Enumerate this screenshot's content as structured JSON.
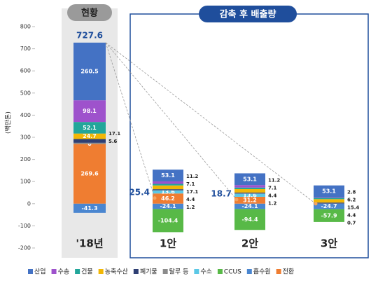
{
  "chart_data": {
    "type": "bar",
    "stacked": true,
    "header_left": "현황",
    "header_right": "감축 후 배출량",
    "y_label": "(백만톤)",
    "categories": [
      "'18년",
      "1안",
      "2안",
      "3안"
    ],
    "totals": [
      727.6,
      25.4,
      18.7,
      null
    ],
    "ylim": [
      -200,
      800
    ],
    "yticks": [
      -200,
      -100,
      0,
      100,
      200,
      300,
      400,
      500,
      600,
      700,
      800
    ],
    "series": [
      {
        "name": "산업",
        "color": "#4472c4",
        "values": [
          260.5,
          53.1,
          53.1,
          53.1
        ],
        "value_labels": [
          "260.5",
          "53.1",
          "53.1",
          "53.1"
        ]
      },
      {
        "name": "수송",
        "color": "#9e52cc",
        "values": [
          98.1,
          11.2,
          11.2,
          2.8
        ],
        "value_labels": [
          "98.1",
          "11.2",
          "11.2",
          "2.8"
        ]
      },
      {
        "name": "건물",
        "color": "#22a69a",
        "values": [
          52.1,
          7.1,
          7.1,
          6.2
        ],
        "value_labels": [
          "52.1",
          "7.1",
          "7.1",
          "6.2"
        ]
      },
      {
        "name": "농축수산",
        "color": "#f2b705",
        "values": [
          24.7,
          17.1,
          15.4,
          15.4
        ],
        "value_labels": [
          "24.7",
          "17.1",
          null,
          "15.4"
        ]
      },
      {
        "name": "폐기물",
        "color": "#2e3f73",
        "values": [
          17.1,
          4.4,
          4.4,
          4.4
        ],
        "value_labels": [
          "17.1",
          "4.4",
          "4.4",
          "4.4"
        ]
      },
      {
        "name": "탈루 등",
        "color": "#8c8c8c",
        "values": [
          5.6,
          1.2,
          1.2,
          0.7
        ],
        "value_labels": [
          "5.6",
          "1.2",
          "1.2",
          "0.7"
        ]
      },
      {
        "name": "수소",
        "color": "#5bc8e6",
        "values": [
          0,
          13.6,
          13.6,
          0
        ],
        "value_labels": [
          "0",
          "13.6",
          "13.6",
          null
        ]
      },
      {
        "name": "CCUS",
        "color": "#58b947",
        "values": [
          0,
          -104.4,
          -94.4,
          -57.9
        ],
        "value_labels": [
          null,
          "-104.4",
          "-94.4",
          "-57.9"
        ]
      },
      {
        "name": "흡수원",
        "color": "#4a86d0",
        "values": [
          -41.3,
          -24.1,
          -24.1,
          -24.7
        ],
        "value_labels": [
          "-41.3",
          "-24.1",
          "-24.1",
          "-24.7"
        ]
      },
      {
        "name": "전환",
        "color": "#ef7d31",
        "values": [
          269.6,
          46.2,
          31.2,
          0
        ],
        "value_labels": [
          "269.6",
          "46.2",
          "31.2",
          null
        ]
      }
    ]
  }
}
